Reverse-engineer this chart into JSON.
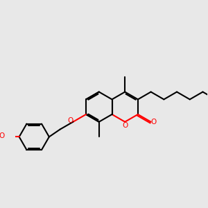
{
  "bg_color": "#e8e8e8",
  "bond_color": "#000000",
  "oxygen_color": "#ff0000",
  "bond_width": 1.5,
  "figsize": [
    3.0,
    3.0
  ],
  "dpi": 100,
  "xlim": [
    0.0,
    10.0
  ],
  "ylim": [
    1.0,
    7.0
  ],
  "BL": 0.78
}
